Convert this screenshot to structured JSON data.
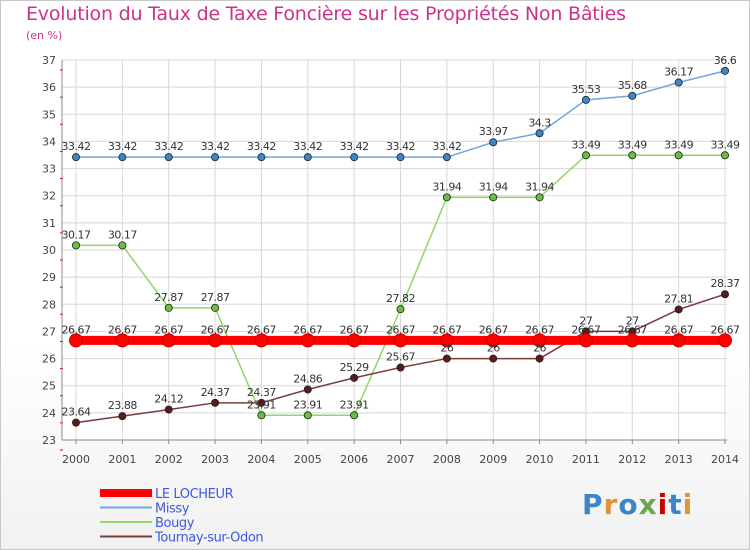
{
  "chart_data": {
    "type": "line",
    "title": "Evolution du Taux de Taxe Foncière sur les Propriétés Non Bâties",
    "ylabel": "(en %)",
    "xlabel": "",
    "ylim": [
      23,
      37
    ],
    "y_ticks": [
      23,
      24,
      25,
      26,
      27,
      28,
      29,
      30,
      31,
      32,
      33,
      34,
      35,
      36,
      37
    ],
    "categories": [
      "2000",
      "2001",
      "2002",
      "2003",
      "2004",
      "2005",
      "2006",
      "2007",
      "2008",
      "2009",
      "2010",
      "2011",
      "2012",
      "2013",
      "2014"
    ],
    "grid": true,
    "legend_position": "bottom-left",
    "series": [
      {
        "name": "LE LOCHEUR",
        "color": "#ff0000",
        "emphasis": true,
        "values": [
          26.67,
          26.67,
          26.67,
          26.67,
          26.67,
          26.67,
          26.67,
          26.67,
          26.67,
          26.67,
          26.67,
          26.67,
          26.67,
          26.67,
          26.67
        ],
        "labels": [
          "26.67",
          "26.67",
          "26.67",
          "26.67",
          "26.67",
          "26.67",
          "26.67",
          "26.67",
          "26.67",
          "26.67",
          "26.67",
          "26.67",
          "26.67",
          "26.67",
          "26.67"
        ]
      },
      {
        "name": "Missy",
        "color": "#6fa8dc",
        "marker": "#3d85c6",
        "values": [
          33.42,
          33.42,
          33.42,
          33.42,
          33.42,
          33.42,
          33.42,
          33.42,
          33.42,
          33.97,
          34.3,
          35.53,
          35.68,
          36.17,
          36.6
        ],
        "labels": [
          "33.42",
          "33.42",
          "33.42",
          "33.42",
          "33.42",
          "33.42",
          "33.42",
          "33.42",
          "33.42",
          "33.97",
          "34.3",
          "35.53",
          "35.68",
          "36.17",
          "36.6"
        ]
      },
      {
        "name": "Bougy",
        "color": "#93d46b",
        "marker": "#6abf3c",
        "values": [
          30.17,
          30.17,
          27.87,
          27.87,
          23.91,
          23.91,
          23.91,
          27.82,
          31.94,
          31.94,
          31.94,
          33.49,
          33.49,
          33.49,
          33.49
        ],
        "labels": [
          "30.17",
          "30.17",
          "27.87",
          "27.87",
          "23.91",
          "23.91",
          "23.91",
          "27.82",
          "31.94",
          "31.94",
          "31.94",
          "33.49",
          "33.49",
          "33.49",
          "33.49"
        ]
      },
      {
        "name": "Tournay-sur-Odon",
        "color": "#7a3b3b",
        "marker": "#5c1a1a",
        "values": [
          23.64,
          23.88,
          24.12,
          24.37,
          24.37,
          24.86,
          25.29,
          25.67,
          26,
          26,
          26,
          27,
          27,
          27.81,
          28.37
        ],
        "labels": [
          "23.64",
          "23.88",
          "24.12",
          "24.37",
          "24.37",
          "24.86",
          "25.29",
          "25.67",
          "26",
          "26",
          "26",
          "27",
          "27",
          "27.81",
          "28.37"
        ]
      }
    ]
  },
  "logo": {
    "text": "Proxiti",
    "letters": [
      "P",
      "r",
      "o",
      "x",
      "i",
      "t",
      "i"
    ],
    "colors": [
      "#3d85c6",
      "#e69138",
      "#3d85c6",
      "#6aa84f",
      "#cc0000",
      "#3d85c6",
      "#e69138"
    ]
  }
}
